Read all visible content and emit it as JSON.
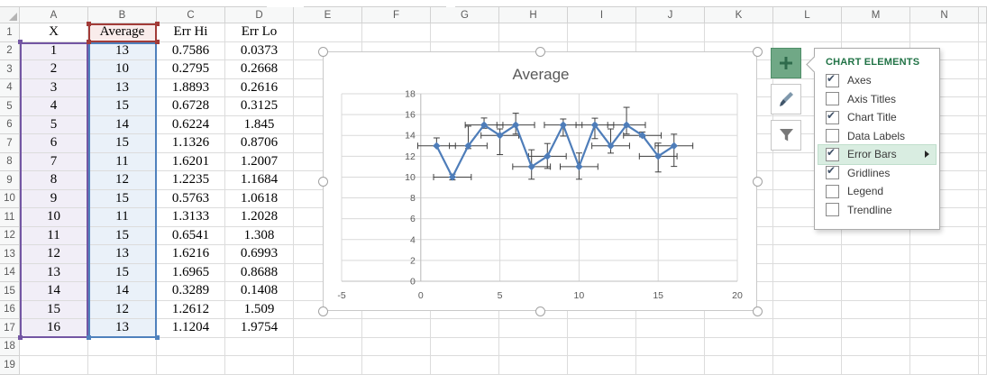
{
  "sheet": {
    "column_headers": [
      "A",
      "B",
      "C",
      "D",
      "E",
      "F",
      "G",
      "H",
      "I",
      "J",
      "K",
      "L",
      "M",
      "N"
    ],
    "row_count": 19,
    "table": {
      "columns": [
        "X",
        "Average",
        "Err Hi",
        "Err Lo"
      ],
      "rows": [
        [
          "1",
          "13",
          "0.7586",
          "0.0373"
        ],
        [
          "2",
          "10",
          "0.2795",
          "0.2668"
        ],
        [
          "3",
          "13",
          "1.8893",
          "0.2616"
        ],
        [
          "4",
          "15",
          "0.6728",
          "0.3125"
        ],
        [
          "5",
          "14",
          "0.6224",
          "1.845"
        ],
        [
          "6",
          "15",
          "1.1326",
          "0.8706"
        ],
        [
          "7",
          "11",
          "1.6201",
          "1.2007"
        ],
        [
          "8",
          "12",
          "1.2235",
          "1.1684"
        ],
        [
          "9",
          "15",
          "0.5763",
          "1.0618"
        ],
        [
          "10",
          "11",
          "1.3133",
          "1.2028"
        ],
        [
          "11",
          "15",
          "0.6541",
          "1.308"
        ],
        [
          "12",
          "13",
          "1.6216",
          "0.6993"
        ],
        [
          "13",
          "15",
          "1.6965",
          "0.8688"
        ],
        [
          "14",
          "14",
          "0.3289",
          "0.1408"
        ],
        [
          "15",
          "12",
          "1.2612",
          "1.509"
        ],
        [
          "16",
          "13",
          "1.1204",
          "1.9754"
        ]
      ]
    },
    "selection_colors": {
      "x_values_range": "#7356a3",
      "series_values_range": "#4f81bd",
      "series_name_range": "#a23b38"
    }
  },
  "chart_data": {
    "type": "line",
    "title": "Average",
    "x": [
      1,
      2,
      3,
      4,
      5,
      6,
      7,
      8,
      9,
      10,
      11,
      12,
      13,
      14,
      15,
      16
    ],
    "series": [
      {
        "name": "Average",
        "values": [
          13,
          10,
          13,
          15,
          14,
          15,
          11,
          12,
          15,
          11,
          15,
          13,
          15,
          14,
          12,
          13
        ]
      }
    ],
    "error_bars": {
      "y_plus": [
        0.7586,
        0.2795,
        1.8893,
        0.6728,
        0.6224,
        1.1326,
        1.6201,
        1.2235,
        0.5763,
        1.3133,
        0.6541,
        1.6216,
        1.6965,
        0.3289,
        1.2612,
        1.1204
      ],
      "y_minus": [
        0.0373,
        0.2668,
        0.2616,
        0.3125,
        1.845,
        0.8706,
        1.2007,
        1.1684,
        1.0618,
        1.2028,
        1.308,
        0.6993,
        0.8688,
        0.1408,
        1.509,
        1.9754
      ],
      "x_plus_minus": 1.19
    },
    "xlim": [
      -5,
      20
    ],
    "ylim": [
      0,
      18
    ],
    "x_ticks": [
      -5,
      0,
      5,
      10,
      15,
      20
    ],
    "y_ticks": [
      0,
      2,
      4,
      6,
      8,
      10,
      12,
      14,
      16,
      18
    ],
    "grid": true,
    "legend": false,
    "marker": "diamond",
    "line_color": "#4e7db9",
    "error_bar_color": "#404040",
    "axis_text_color": "#595959"
  },
  "chart_toolbar": {
    "buttons": [
      {
        "id": "chart-elements-button",
        "icon": "plus-icon",
        "active": true
      },
      {
        "id": "chart-styles-button",
        "icon": "paintbrush-icon",
        "active": false
      },
      {
        "id": "chart-filters-button",
        "icon": "funnel-icon",
        "active": false
      }
    ]
  },
  "chart_elements_panel": {
    "title": "CHART ELEMENTS",
    "items": [
      {
        "label": "Axes",
        "checked": true,
        "highlighted": false,
        "has_flyout": false
      },
      {
        "label": "Axis Titles",
        "checked": false,
        "highlighted": false,
        "has_flyout": false
      },
      {
        "label": "Chart Title",
        "checked": true,
        "highlighted": false,
        "has_flyout": false
      },
      {
        "label": "Data Labels",
        "checked": false,
        "highlighted": false,
        "has_flyout": false
      },
      {
        "label": "Error Bars",
        "checked": true,
        "highlighted": true,
        "has_flyout": true
      },
      {
        "label": "Gridlines",
        "checked": true,
        "highlighted": false,
        "has_flyout": false
      },
      {
        "label": "Legend",
        "checked": false,
        "highlighted": false,
        "has_flyout": false
      },
      {
        "label": "Trendline",
        "checked": false,
        "highlighted": false,
        "has_flyout": false
      }
    ],
    "accent_color": "#217346"
  }
}
